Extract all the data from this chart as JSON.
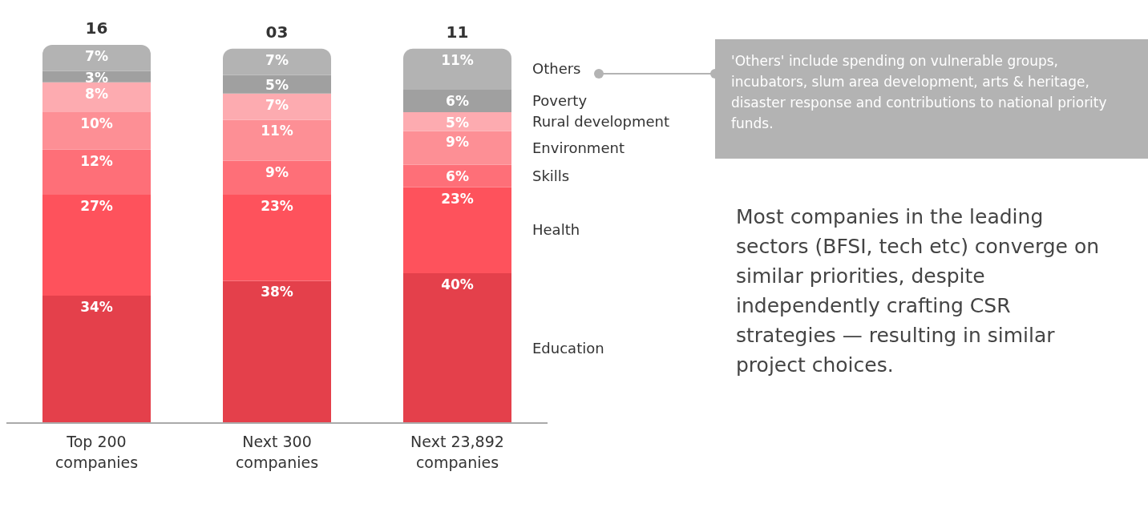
{
  "chart_data": {
    "type": "bar",
    "stacked": true,
    "legend": "right",
    "grid": false,
    "categories": [
      "Top 200 companies",
      "Next 300 companies",
      "Next 23,892 companies"
    ],
    "series": [
      {
        "name": "Education",
        "color": "#e4404b",
        "values": [
          34,
          38,
          40
        ],
        "value_labels": [
          "34%",
          "38%",
          "40%"
        ]
      },
      {
        "name": "Health",
        "color": "#fe525c",
        "values": [
          27,
          23,
          23
        ],
        "value_labels": [
          "27%",
          "23%",
          "23%"
        ]
      },
      {
        "name": "Skills",
        "color": "#fe6f78",
        "values": [
          12,
          9,
          6
        ],
        "value_labels": [
          "12%",
          "9%",
          "6%"
        ]
      },
      {
        "name": "Environment",
        "color": "#fd8f95",
        "values": [
          10,
          11,
          9
        ],
        "value_labels": [
          "10%",
          "11%",
          "9%"
        ]
      },
      {
        "name": "Rural development",
        "color": "#fdabb0",
        "values": [
          8,
          7,
          5
        ],
        "value_labels": [
          "8%",
          "7%",
          "5%"
        ]
      },
      {
        "name": "Poverty",
        "color": "#a0a0a0",
        "values": [
          3,
          5,
          6
        ],
        "value_labels": [
          "3%",
          "5%",
          "6%"
        ]
      },
      {
        "name": "Others",
        "color": "#b3b3b3",
        "values": [
          7,
          7,
          11
        ],
        "value_labels": [
          "7%",
          "7%",
          "11%"
        ]
      }
    ],
    "annotations": [
      "16",
      "03",
      "11",
      "'Others' include spending on vulnerable groups, incubators, slum area development, arts & heritage, disaster response and contributions to national priority funds.",
      "Most companies in the leading sectors (BFSI, tech etc) converge on similar priorities, despite independently crafting CSR strategies — resulting in similar project choices."
    ]
  }
}
